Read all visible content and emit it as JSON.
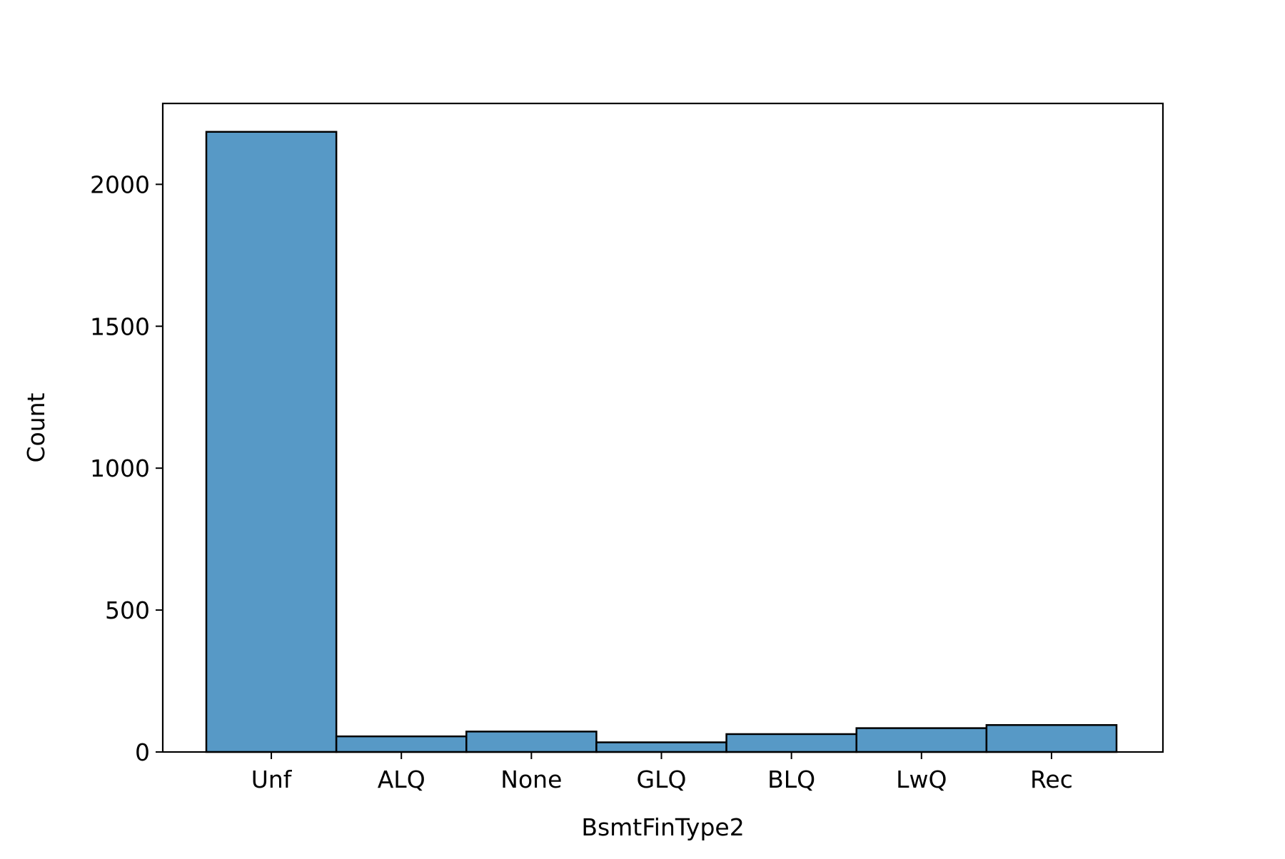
{
  "chart_data": {
    "type": "bar",
    "xlabel": "BsmtFinType2",
    "ylabel": "Count",
    "categories": [
      "Unf",
      "ALQ",
      "None",
      "GLQ",
      "BLQ",
      "LwQ",
      "Rec"
    ],
    "values": [
      2185,
      55,
      72,
      34,
      63,
      84,
      95
    ],
    "ylim": [
      0,
      2285
    ],
    "yticks": [
      0,
      500,
      1000,
      1500,
      2000
    ],
    "grid": false,
    "bar_color": "#5799c6",
    "edge_color": "#000000"
  }
}
